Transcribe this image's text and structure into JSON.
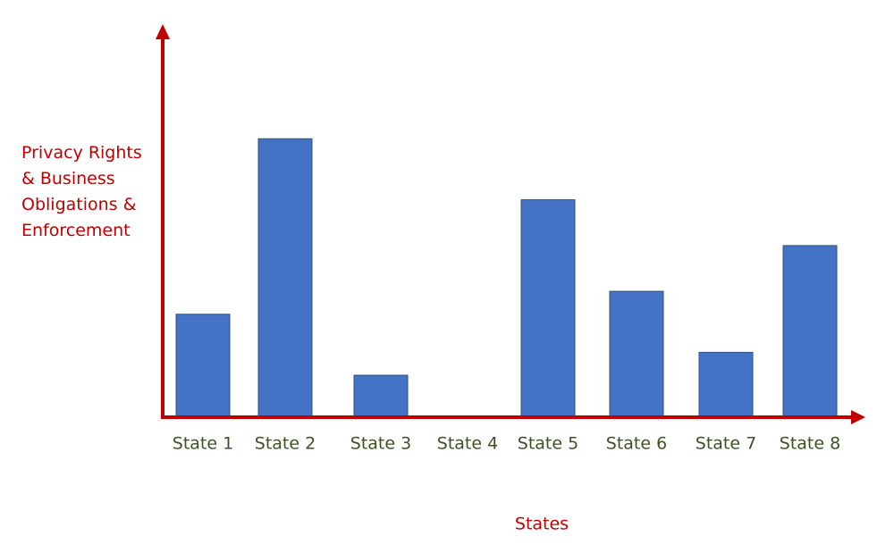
{
  "chart_data": {
    "type": "bar",
    "x_label": "States",
    "y_label": "Privacy Rights & Business Obligations & Enforcement",
    "categories": [
      "State 1",
      "State 2",
      "State 3",
      "State 4",
      "State 5",
      "State 6",
      "State 7",
      "State 8"
    ],
    "values": [
      27,
      73,
      11,
      0,
      57,
      33,
      17,
      45
    ],
    "color": "#4472c4",
    "axis_color": "#c00000",
    "ylim": [
      0,
      100
    ]
  }
}
